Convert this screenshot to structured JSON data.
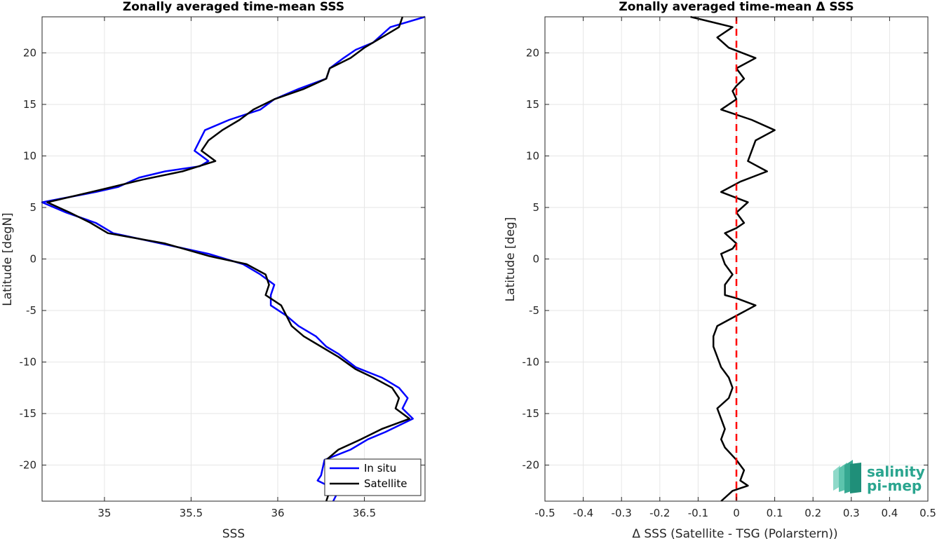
{
  "chart_data": [
    {
      "type": "line",
      "title": "Zonally averaged time-mean SSS",
      "xlabel": "SSS",
      "ylabel": "Latitude [degN]",
      "xlim": [
        34.64,
        36.85
      ],
      "ylim": [
        -23.5,
        23.5
      ],
      "xticks": [
        "35",
        "35.5",
        "36",
        "36.5"
      ],
      "xtick_values": [
        35,
        35.5,
        36,
        36.5
      ],
      "yticks": [
        "-20",
        "-15",
        "-10",
        "-5",
        "0",
        "5",
        "10",
        "15",
        "20"
      ],
      "ytick_values": [
        -20,
        -15,
        -10,
        -5,
        0,
        5,
        10,
        15,
        20
      ],
      "grid": true,
      "legend_position": "bottom-right",
      "series": [
        {
          "name": "In situ",
          "color": "#0000ff",
          "points": [
            [
              36.85,
              23.5
            ],
            [
              36.65,
              22.5
            ],
            [
              36.55,
              21
            ],
            [
              36.45,
              20.3
            ],
            [
              36.38,
              19.5
            ],
            [
              36.3,
              18.5
            ],
            [
              36.28,
              17.5
            ],
            [
              36.12,
              16.5
            ],
            [
              35.98,
              15.5
            ],
            [
              35.9,
              14.5
            ],
            [
              35.72,
              13.5
            ],
            [
              35.58,
              12.5
            ],
            [
              35.52,
              10.5
            ],
            [
              35.6,
              9.5
            ],
            [
              35.55,
              9
            ],
            [
              35.35,
              8.5
            ],
            [
              35.2,
              7.9
            ],
            [
              35.08,
              7
            ],
            [
              34.95,
              6.5
            ],
            [
              34.64,
              5.5
            ],
            [
              34.78,
              4.5
            ],
            [
              34.95,
              3.5
            ],
            [
              35.05,
              2.5
            ],
            [
              35.3,
              1.6
            ],
            [
              35.6,
              0.5
            ],
            [
              35.8,
              -0.5
            ],
            [
              35.9,
              -1.5
            ],
            [
              35.98,
              -2.5
            ],
            [
              35.96,
              -3.5
            ],
            [
              35.96,
              -4.5
            ],
            [
              36.05,
              -5.5
            ],
            [
              36.12,
              -6.5
            ],
            [
              36.22,
              -7.5
            ],
            [
              36.28,
              -8.5
            ],
            [
              36.35,
              -9.2
            ],
            [
              36.45,
              -10.5
            ],
            [
              36.6,
              -11.5
            ],
            [
              36.7,
              -12.5
            ],
            [
              36.75,
              -13.5
            ],
            [
              36.72,
              -14.5
            ],
            [
              36.78,
              -15.5
            ],
            [
              36.62,
              -16.8
            ],
            [
              36.52,
              -17.5
            ],
            [
              36.42,
              -18.5
            ],
            [
              36.27,
              -19.5
            ],
            [
              36.25,
              -21
            ],
            [
              36.23,
              -21.5
            ],
            [
              36.35,
              -22.5
            ],
            [
              36.32,
              -23.5
            ]
          ]
        },
        {
          "name": "Satellite",
          "color": "#000000",
          "points": [
            [
              36.72,
              23.5
            ],
            [
              36.7,
              22.5
            ],
            [
              36.6,
              21.5
            ],
            [
              36.5,
              20.5
            ],
            [
              36.42,
              19.5
            ],
            [
              36.3,
              18.5
            ],
            [
              36.28,
              17.5
            ],
            [
              36.15,
              16.5
            ],
            [
              35.98,
              15.5
            ],
            [
              35.86,
              14.5
            ],
            [
              35.78,
              13.5
            ],
            [
              35.68,
              12.5
            ],
            [
              35.6,
              11.5
            ],
            [
              35.56,
              10.5
            ],
            [
              35.64,
              9.5
            ],
            [
              35.45,
              8.5
            ],
            [
              35.22,
              7.7
            ],
            [
              35.0,
              6.8
            ],
            [
              34.67,
              5.5
            ],
            [
              34.8,
              4.5
            ],
            [
              34.92,
              3.5
            ],
            [
              35.02,
              2.5
            ],
            [
              35.35,
              1.5
            ],
            [
              35.6,
              0.3
            ],
            [
              35.82,
              -0.5
            ],
            [
              35.93,
              -1.5
            ],
            [
              35.95,
              -2.5
            ],
            [
              35.93,
              -3.5
            ],
            [
              36.02,
              -4.5
            ],
            [
              36.05,
              -5.5
            ],
            [
              36.08,
              -6.5
            ],
            [
              36.15,
              -7.5
            ],
            [
              36.25,
              -8.5
            ],
            [
              36.35,
              -9.5
            ],
            [
              36.45,
              -10.7
            ],
            [
              36.55,
              -11.5
            ],
            [
              36.66,
              -12.5
            ],
            [
              36.7,
              -13.5
            ],
            [
              36.68,
              -14.5
            ],
            [
              36.76,
              -15.5
            ],
            [
              36.6,
              -16.5
            ],
            [
              36.48,
              -17.5
            ],
            [
              36.35,
              -18.5
            ],
            [
              36.28,
              -19.5
            ],
            [
              36.3,
              -20.5
            ],
            [
              36.28,
              -21.5
            ],
            [
              36.3,
              -22.5
            ],
            [
              36.28,
              -23.5
            ]
          ]
        }
      ]
    },
    {
      "type": "line",
      "title": "Zonally averaged time-mean Δ SSS",
      "xlabel": "Δ SSS (Satellite - TSG (Polarstern))",
      "ylabel": "Latitude [deg]",
      "xlim": [
        -0.5,
        0.5
      ],
      "ylim": [
        -23.5,
        23.5
      ],
      "xticks": [
        "-0.5",
        "-0.4",
        "-0.3",
        "-0.2",
        "-0.1",
        "0",
        "0.1",
        "0.2",
        "0.3",
        "0.4",
        "0.5"
      ],
      "xtick_values": [
        -0.5,
        -0.4,
        -0.3,
        -0.2,
        -0.1,
        0,
        0.1,
        0.2,
        0.3,
        0.4,
        0.5
      ],
      "yticks": [
        "-20",
        "-15",
        "-10",
        "-5",
        "0",
        "5",
        "10",
        "15",
        "20"
      ],
      "ytick_values": [
        -20,
        -15,
        -10,
        -5,
        0,
        5,
        10,
        15,
        20
      ],
      "grid": true,
      "reference_line": {
        "x": 0,
        "color": "#ff0000",
        "style": "dashed"
      },
      "series": [
        {
          "color": "#000000",
          "points": [
            [
              -0.12,
              23.5
            ],
            [
              -0.01,
              22.5
            ],
            [
              -0.05,
              21.5
            ],
            [
              -0.02,
              20.5
            ],
            [
              0.05,
              19.5
            ],
            [
              0.0,
              18.5
            ],
            [
              0.02,
              17.5
            ],
            [
              0.0,
              16.8
            ],
            [
              -0.01,
              16.3
            ],
            [
              0.0,
              15.5
            ],
            [
              -0.04,
              14.5
            ],
            [
              0.04,
              13.5
            ],
            [
              0.1,
              12.5
            ],
            [
              0.05,
              11.5
            ],
            [
              0.03,
              9.5
            ],
            [
              0.08,
              8.5
            ],
            [
              0.01,
              7.5
            ],
            [
              -0.04,
              6.5
            ],
            [
              0.03,
              5.5
            ],
            [
              0.0,
              4.5
            ],
            [
              0.02,
              3.5
            ],
            [
              0.0,
              3
            ],
            [
              -0.03,
              2.5
            ],
            [
              0.0,
              1.5
            ],
            [
              -0.01,
              1
            ],
            [
              -0.04,
              0.5
            ],
            [
              -0.03,
              -0.5
            ],
            [
              -0.01,
              -1.5
            ],
            [
              -0.03,
              -2.5
            ],
            [
              -0.03,
              -3.5
            ],
            [
              0.0,
              -3.8
            ],
            [
              0.05,
              -4.5
            ],
            [
              0.0,
              -5.5
            ],
            [
              -0.05,
              -6.5
            ],
            [
              -0.06,
              -7.5
            ],
            [
              -0.06,
              -8.5
            ],
            [
              -0.05,
              -9.5
            ],
            [
              -0.04,
              -10.5
            ],
            [
              -0.02,
              -11.5
            ],
            [
              -0.01,
              -12.5
            ],
            [
              -0.02,
              -13.5
            ],
            [
              -0.05,
              -14.5
            ],
            [
              -0.04,
              -15.5
            ],
            [
              -0.03,
              -16.5
            ],
            [
              -0.04,
              -17.5
            ],
            [
              -0.03,
              -18.3
            ],
            [
              0.0,
              -19.5
            ],
            [
              0.02,
              -20.5
            ],
            [
              0.01,
              -21.5
            ],
            [
              0.03,
              -22
            ],
            [
              -0.01,
              -22.5
            ],
            [
              -0.04,
              -23.5
            ]
          ]
        }
      ]
    }
  ],
  "logo": {
    "line1": "salinity",
    "line2": "pi-mep"
  }
}
